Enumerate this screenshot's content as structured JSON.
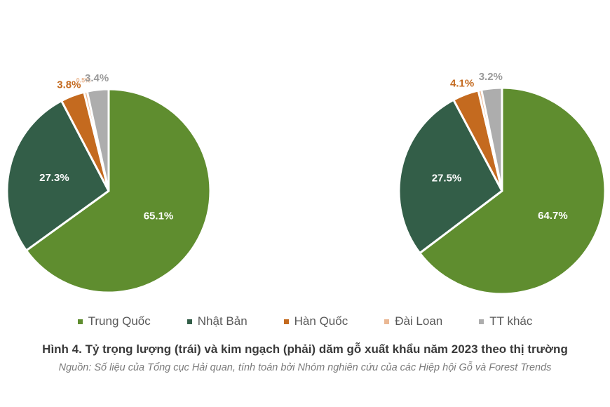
{
  "chart_data": [
    {
      "type": "pie",
      "categories": [
        "Trung Quốc",
        "Nhật Bản",
        "Hàn Quốc",
        "Đài Loan",
        "TT khác"
      ],
      "values": [
        65.1,
        27.3,
        3.8,
        0.5,
        3.4
      ],
      "labels": [
        "65.1%",
        "27.3%",
        "3.8%",
        "0.5%",
        "3.4%"
      ]
    },
    {
      "type": "pie",
      "categories": [
        "Trung Quốc",
        "Nhật Bản",
        "Hàn Quốc",
        "Đài Loan",
        "TT khác"
      ],
      "values": [
        64.7,
        27.5,
        4.1,
        0.5,
        3.2
      ],
      "labels": [
        "64.7%",
        "27.5%",
        "4.1%",
        "",
        "3.2%"
      ]
    }
  ],
  "colors": [
    "#5f8d2f",
    "#335e48",
    "#c46a1f",
    "#eab894",
    "#adadad"
  ],
  "label_colors": [
    "#ffffff",
    "#ffffff",
    "#c46a1f",
    "#eab894",
    "#9a9a9a"
  ],
  "legend": [
    "Trung Quốc",
    "Nhật Bản",
    "Hàn Quốc",
    "Đài Loan",
    "TT khác"
  ],
  "caption": "Hình 4. Tỷ trọng lượng (trái) và kim ngạch (phải) dăm gỗ xuất khẩu năm 2023 theo thị trường",
  "source": "Nguồn: Số liệu của Tổng cục Hải quan, tính toán bởi Nhóm nghiên cứu của các Hiệp hội Gỗ và Forest Trends"
}
